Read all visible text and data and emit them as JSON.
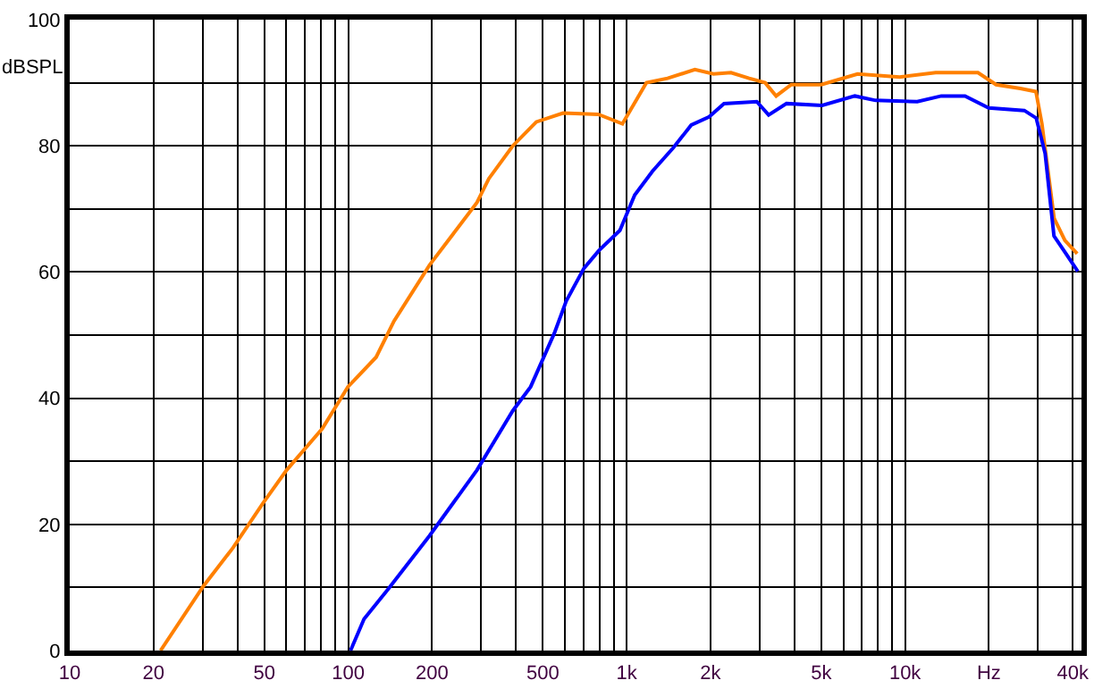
{
  "chart_data": {
    "type": "line",
    "ylabel": "dBSPL",
    "log": "x",
    "grid": true,
    "marker": "none",
    "line_style": "solid",
    "xlim": [
      10,
      43000
    ],
    "ylim": [
      0,
      100
    ],
    "xticks": [
      10,
      20,
      50,
      100,
      200,
      500,
      {
        "value": 1000,
        "label": "1k"
      },
      {
        "value": 2000,
        "label": "2k"
      },
      {
        "value": 5000,
        "label": "5k"
      },
      {
        "value": 10000,
        "label": "10k"
      },
      {
        "value": 20000,
        "label": "Hz"
      },
      {
        "value": 40000,
        "label": "40k"
      }
    ],
    "yticks": [
      0,
      {
        "value": 10,
        "label": null
      },
      20,
      {
        "value": 30,
        "label": null
      },
      40,
      {
        "value": 50,
        "label": null
      },
      60,
      {
        "value": 70,
        "label": null
      },
      80,
      {
        "value": 90,
        "label": null
      },
      100
    ],
    "series": [
      {
        "color": "#ff8000",
        "x": [
          21.2,
          30.2,
          38.6,
          49.5,
          60.1,
          80.8,
          99.8,
          126,
          146,
          196,
          290,
          320,
          390,
          474,
          591,
          791,
          966,
          1178,
          1403,
          1758,
          2050,
          2370,
          2754,
          3144,
          3443,
          3900,
          5000,
          6750,
          9570,
          12880,
          18270,
          21230,
          25930,
          29500,
          31000,
          34300,
          37500,
          41500
        ],
        "values": [
          0,
          10.2,
          16.3,
          23.4,
          28.6,
          35.2,
          41.8,
          46.5,
          52.2,
          61.1,
          71,
          74.8,
          80,
          83.8,
          85.2,
          85,
          83.5,
          90,
          90.7,
          92.1,
          91.4,
          91.6,
          90.7,
          90,
          87.9,
          89.7,
          89.7,
          91.4,
          90.9,
          91.6,
          91.6,
          89.7,
          89.1,
          88.6,
          83.5,
          68.5,
          65,
          62.9
        ]
      },
      {
        "color": "#0000ff",
        "x": [
          102,
          114,
          139,
          196,
          290,
          390,
          452,
          550,
          607,
          703,
          795,
          946,
          1069,
          1239,
          1472,
          1706,
          1977,
          2237,
          2933,
          3236,
          3751,
          5035,
          6600,
          7830,
          11060,
          13490,
          16410,
          19950,
          26800,
          29580,
          31840,
          34250,
          37820,
          41700
        ],
        "values": [
          0,
          5,
          9.7,
          18.2,
          28.6,
          38,
          41.8,
          50.3,
          55.4,
          60.6,
          63.4,
          66.6,
          72.2,
          76,
          79.7,
          83.3,
          84.6,
          86.7,
          87,
          84.9,
          86.7,
          86.4,
          87.9,
          87.2,
          87,
          87.9,
          87.9,
          86,
          85.6,
          84.4,
          78.8,
          65.7,
          62.9,
          60.1
        ]
      }
    ]
  }
}
